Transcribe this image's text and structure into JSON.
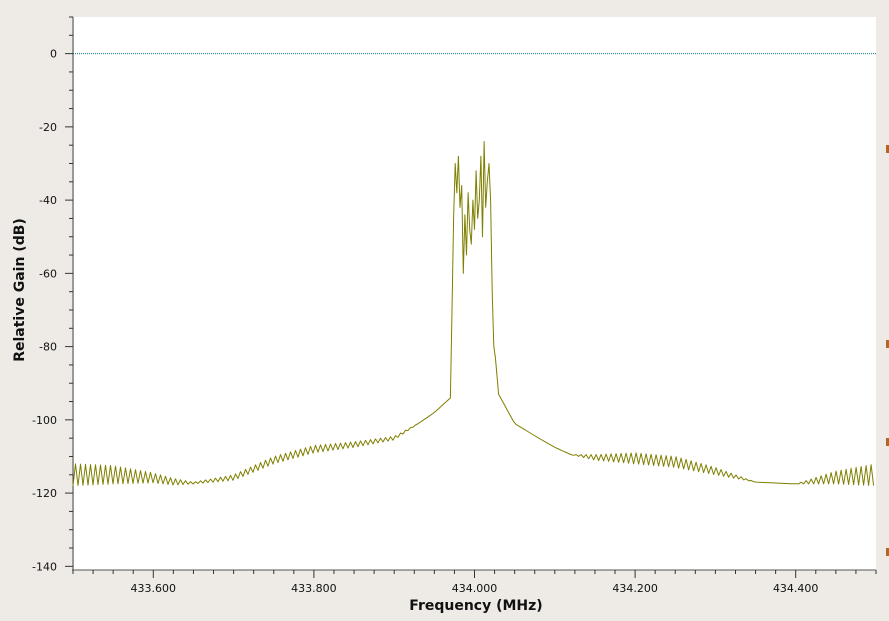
{
  "chart_data": {
    "type": "line",
    "title": "",
    "xlabel": "Frequency (MHz)",
    "ylabel": "Relative Gain (dB)",
    "xlim": [
      433.5,
      434.5
    ],
    "ylim": [
      -141,
      10
    ],
    "xticks": [
      433.6,
      433.8,
      434.0,
      434.2,
      434.4
    ],
    "xtick_labels": [
      "433.600",
      "433.800",
      "434.000",
      "434.200",
      "434.400"
    ],
    "yticks": [
      0,
      -20,
      -40,
      -60,
      -80,
      -100,
      -120,
      -140
    ],
    "ytick_labels": [
      "0",
      "-20",
      "-40",
      "-60",
      "-80",
      "-100",
      "-120",
      "-140"
    ],
    "reference_line": {
      "y": 0,
      "color": "#0a7a7a",
      "style": "dotted"
    },
    "grid": false,
    "series": [
      {
        "color": "#7f7f00",
        "envelope_x": [
          433.5,
          433.55,
          433.6,
          433.625,
          433.65,
          433.7,
          433.75,
          433.8,
          433.85,
          433.9,
          433.93,
          433.95,
          433.965,
          433.97
        ],
        "envelope_y_low": [
          -118,
          -117.5,
          -117.2,
          -117.8,
          -117.5,
          -116.5,
          -112,
          -109,
          -107.5,
          -105.5,
          -101,
          -98,
          -95,
          -94
        ],
        "envelope_y_high": [
          -112,
          -112.5,
          -114.5,
          -116,
          -117,
          -115,
          -110,
          -107,
          -106,
          -104.5,
          -101,
          -98,
          -95,
          -94
        ],
        "center_x": [
          433.97,
          433.972,
          433.974,
          433.976,
          433.978,
          433.98,
          433.982,
          433.984,
          433.986,
          433.988,
          433.99,
          433.992,
          433.994,
          433.996,
          433.998,
          434.0,
          434.002,
          434.004,
          434.006,
          434.008,
          434.01,
          434.012,
          434.014,
          434.016,
          434.018,
          434.02,
          434.022,
          434.024,
          434.026,
          434.028,
          434.03
        ],
        "center_y": [
          -94,
          -70,
          -45,
          -30,
          -38,
          -28,
          -42,
          -36,
          -60,
          -44,
          -55,
          -38,
          -48,
          -52,
          -40,
          -48,
          -32,
          -45,
          -40,
          -28,
          -50,
          -24,
          -42,
          -35,
          -30,
          -40,
          -65,
          -80,
          -83,
          -88,
          -93
        ],
        "right_envelope_x": [
          434.03,
          434.05,
          434.08,
          434.1,
          434.12,
          434.15,
          434.2,
          434.25,
          434.3,
          434.35,
          434.4,
          434.45,
          434.5
        ],
        "right_envelope_y_low": [
          -93,
          -101,
          -105,
          -107.5,
          -109.5,
          -111,
          -112,
          -113,
          -115,
          -117,
          -117.5,
          -117.5,
          -118
        ],
        "right_envelope_y_high": [
          -93,
          -101,
          -105,
          -107.5,
          -109.5,
          -109.5,
          -109,
          -110,
          -113,
          -117,
          -117.5,
          -114,
          -112
        ]
      }
    ]
  }
}
